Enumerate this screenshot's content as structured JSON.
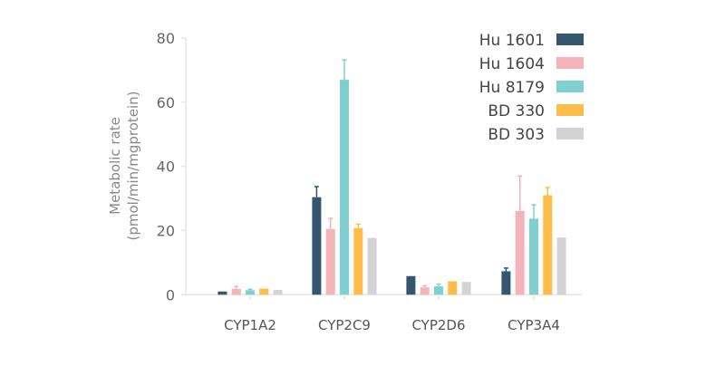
{
  "chart_data": {
    "type": "bar",
    "title": "",
    "xlabel": "",
    "ylabel": [
      "Metabolic rate",
      "(pmol/min/mgprotein)"
    ],
    "ylim": [
      0,
      80
    ],
    "yticks": [
      0,
      20,
      40,
      60,
      80
    ],
    "grid": false,
    "legend_position": "top-right",
    "categories": [
      "CYP1A2",
      "CYP2C9",
      "CYP2D6",
      "CYP3A4"
    ],
    "series": [
      {
        "name": "Hu 1601",
        "color": "#34566f",
        "values": [
          1.0,
          30.4,
          5.8,
          7.3
        ],
        "error_top": [
          null,
          33.7,
          null,
          8.3
        ]
      },
      {
        "name": "Hu 1604",
        "color": "#f4b3b8",
        "values": [
          1.8,
          20.5,
          2.3,
          26.1
        ],
        "error_top": [
          2.6,
          23.8,
          2.8,
          37.0
        ]
      },
      {
        "name": "Hu 8179",
        "color": "#7fd0d0",
        "values": [
          1.4,
          67.0,
          2.6,
          23.7
        ],
        "error_top": [
          1.7,
          73.2,
          3.3,
          28.0
        ]
      },
      {
        "name": "BD 330",
        "color": "#fdbd48",
        "values": [
          1.9,
          20.8,
          4.2,
          31.0
        ],
        "error_top": [
          null,
          22.0,
          null,
          33.4
        ]
      },
      {
        "name": "BD 303",
        "color": "#d3d3d3",
        "values": [
          1.5,
          17.7,
          4.0,
          17.8
        ],
        "error_top": [
          null,
          null,
          null,
          null
        ]
      }
    ]
  }
}
